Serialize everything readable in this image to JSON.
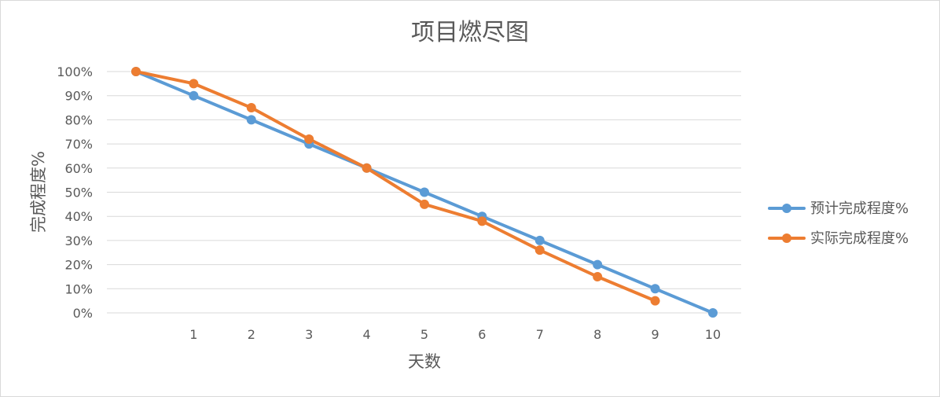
{
  "chart_data": {
    "type": "line",
    "title": "项目燃尽图",
    "xlabel": "天数",
    "ylabel": "完成程度%",
    "x": [
      "",
      "1",
      "2",
      "3",
      "4",
      "5",
      "6",
      "7",
      "8",
      "9",
      "10"
    ],
    "ylim": [
      0,
      100
    ],
    "yticks": [
      "0%",
      "10%",
      "20%",
      "30%",
      "40%",
      "50%",
      "60%",
      "70%",
      "80%",
      "90%",
      "100%"
    ],
    "grid": true,
    "legend": "right",
    "series": [
      {
        "name": "预计完成程度%",
        "color": "#5b9bd5",
        "values": [
          100,
          90,
          80,
          70,
          60,
          50,
          40,
          30,
          20,
          10,
          0
        ]
      },
      {
        "name": "实际完成程度%",
        "color": "#ed7d31",
        "values": [
          100,
          95,
          85,
          72,
          60,
          45,
          38,
          26,
          15,
          5,
          null
        ]
      }
    ]
  }
}
